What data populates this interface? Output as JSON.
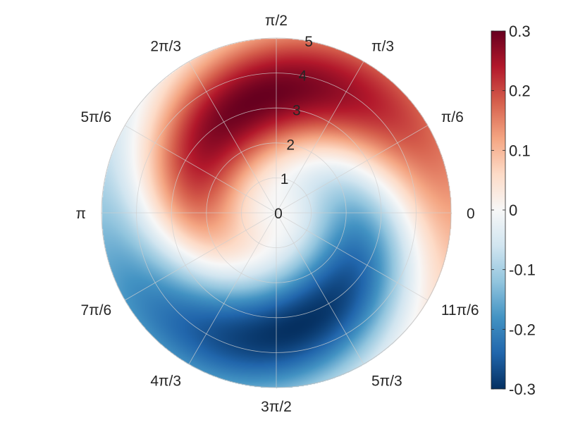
{
  "chart_data": {
    "type": "heatmap",
    "subtype": "polar-filled-contour",
    "title": "",
    "r_range": [
      0,
      5
    ],
    "r_tick_labels": [
      "0",
      "1",
      "2",
      "3",
      "4",
      "5"
    ],
    "theta_tick_labels": [
      "0",
      "π/6",
      "π/3",
      "π/2",
      "2π/3",
      "5π/6",
      "π",
      "7π/6",
      "4π/3",
      "3π/2",
      "5π/3",
      "11π/6"
    ],
    "colorbar": {
      "range": [
        -0.3,
        0.3
      ],
      "ticks": [
        0.3,
        0.2,
        0.1,
        0,
        -0.1,
        -0.2,
        -0.3
      ],
      "tick_labels": [
        "0.3",
        "0.2",
        "0.1",
        "0",
        "-0.1",
        "-0.2",
        "-0.3"
      ],
      "colormap": "diverging red-white-blue",
      "colors": [
        "#053061",
        "#2166ac",
        "#4393c3",
        "#92c5de",
        "#d1e5f0",
        "#f7f7f7",
        "#fddbc7",
        "#f4a582",
        "#d6604d",
        "#b2182b",
        "#67001f"
      ]
    },
    "field": {
      "description": "two-arm spiral: positive (red) lobe in upper half, negative (blue) lobe in lower half",
      "peak_value": 0.3,
      "peak_radius": 3.3,
      "peak_angle": "5π/9",
      "minimum_value": -0.3,
      "minimum_radius": 3.3,
      "minimum_angle": "14π/9"
    },
    "grid": true
  }
}
